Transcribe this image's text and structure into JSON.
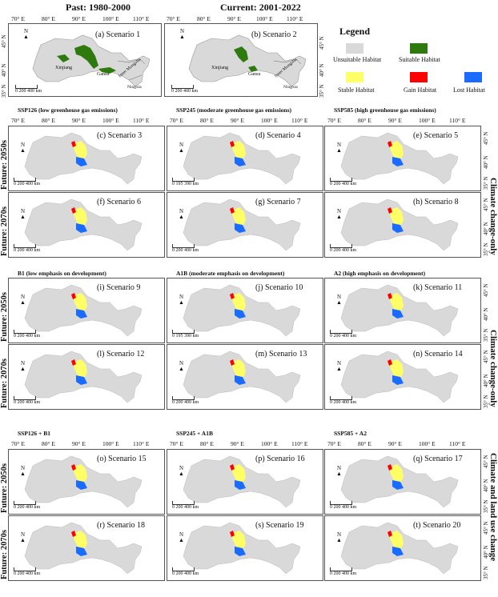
{
  "top": {
    "past_title": "Past: 1980-2000",
    "current_title": "Current: 2001-2022",
    "scenario1": "(a) Scenario 1",
    "scenario2": "(b) Scenario 2",
    "place_xinjiang": "Xinjiang",
    "place_gansu": "Gansu",
    "place_inner_mongolia": "Inner Mongolia",
    "place_ningxia": "Ningxia"
  },
  "legend": {
    "title": "Legend",
    "unsuitable": "Unsuitable Habitat",
    "suitable": "Suitable Habitat",
    "stable": "Stable Habitat",
    "gain": "Gain Habitat",
    "lost": "Lost Habitat",
    "colors": {
      "unsuitable": "#d9d9d9",
      "suitable": "#2f7a0f",
      "stable": "#ffff66",
      "gain": "#ff0000",
      "lost": "#1a6bff"
    }
  },
  "coords": {
    "lon": [
      "70° E",
      "80° E",
      "90° E",
      "100° E",
      "110° E"
    ],
    "lat": [
      "35° N",
      "40° N",
      "45° N"
    ],
    "north": "N",
    "km": "km",
    "scale_a": "0",
    "scale_b": "200 400",
    "scale_b_alt": "195 390"
  },
  "sections": {
    "climate_headers": [
      "SSP126 (low greenhouse gas emissions)",
      "SSP245 (moderate greenhouse gas emissions)",
      "SSP585 (high greenhouse gas emissions)"
    ],
    "land_headers": [
      "B1 (low emphasis on development)",
      "A1B (moderate emphasis on development)",
      "A2 (high emphasis on development)"
    ],
    "combined_headers": [
      "SSP126 + B1",
      "SSP245 + A1B",
      "SSP585 + A2"
    ],
    "row_2050": "Future: 2050s",
    "row_2070": "Future: 2070s",
    "side_climate": "Climate change-only",
    "side_land": "Climate change-only",
    "side_combined": "Climate and land use change"
  },
  "scenarios": [
    "(c) Scenario 3",
    "(d) Scenario 4",
    "(e) Scenario 5",
    "(f) Scenario 6",
    "(g) Scenario 7",
    "(h) Scenario 8",
    "(i) Scenario 9",
    "(j) Scenario 10",
    "(k) Scenario 11",
    "(l) Scenario 12",
    "(m) Scenario 13",
    "(n) Scenario 14",
    "(o) Scenario 15",
    "(p) Scenario 16",
    "(q) Scenario 17",
    "(r) Scenario 18",
    "(s) Scenario 19",
    "(t) Scenario 20"
  ]
}
